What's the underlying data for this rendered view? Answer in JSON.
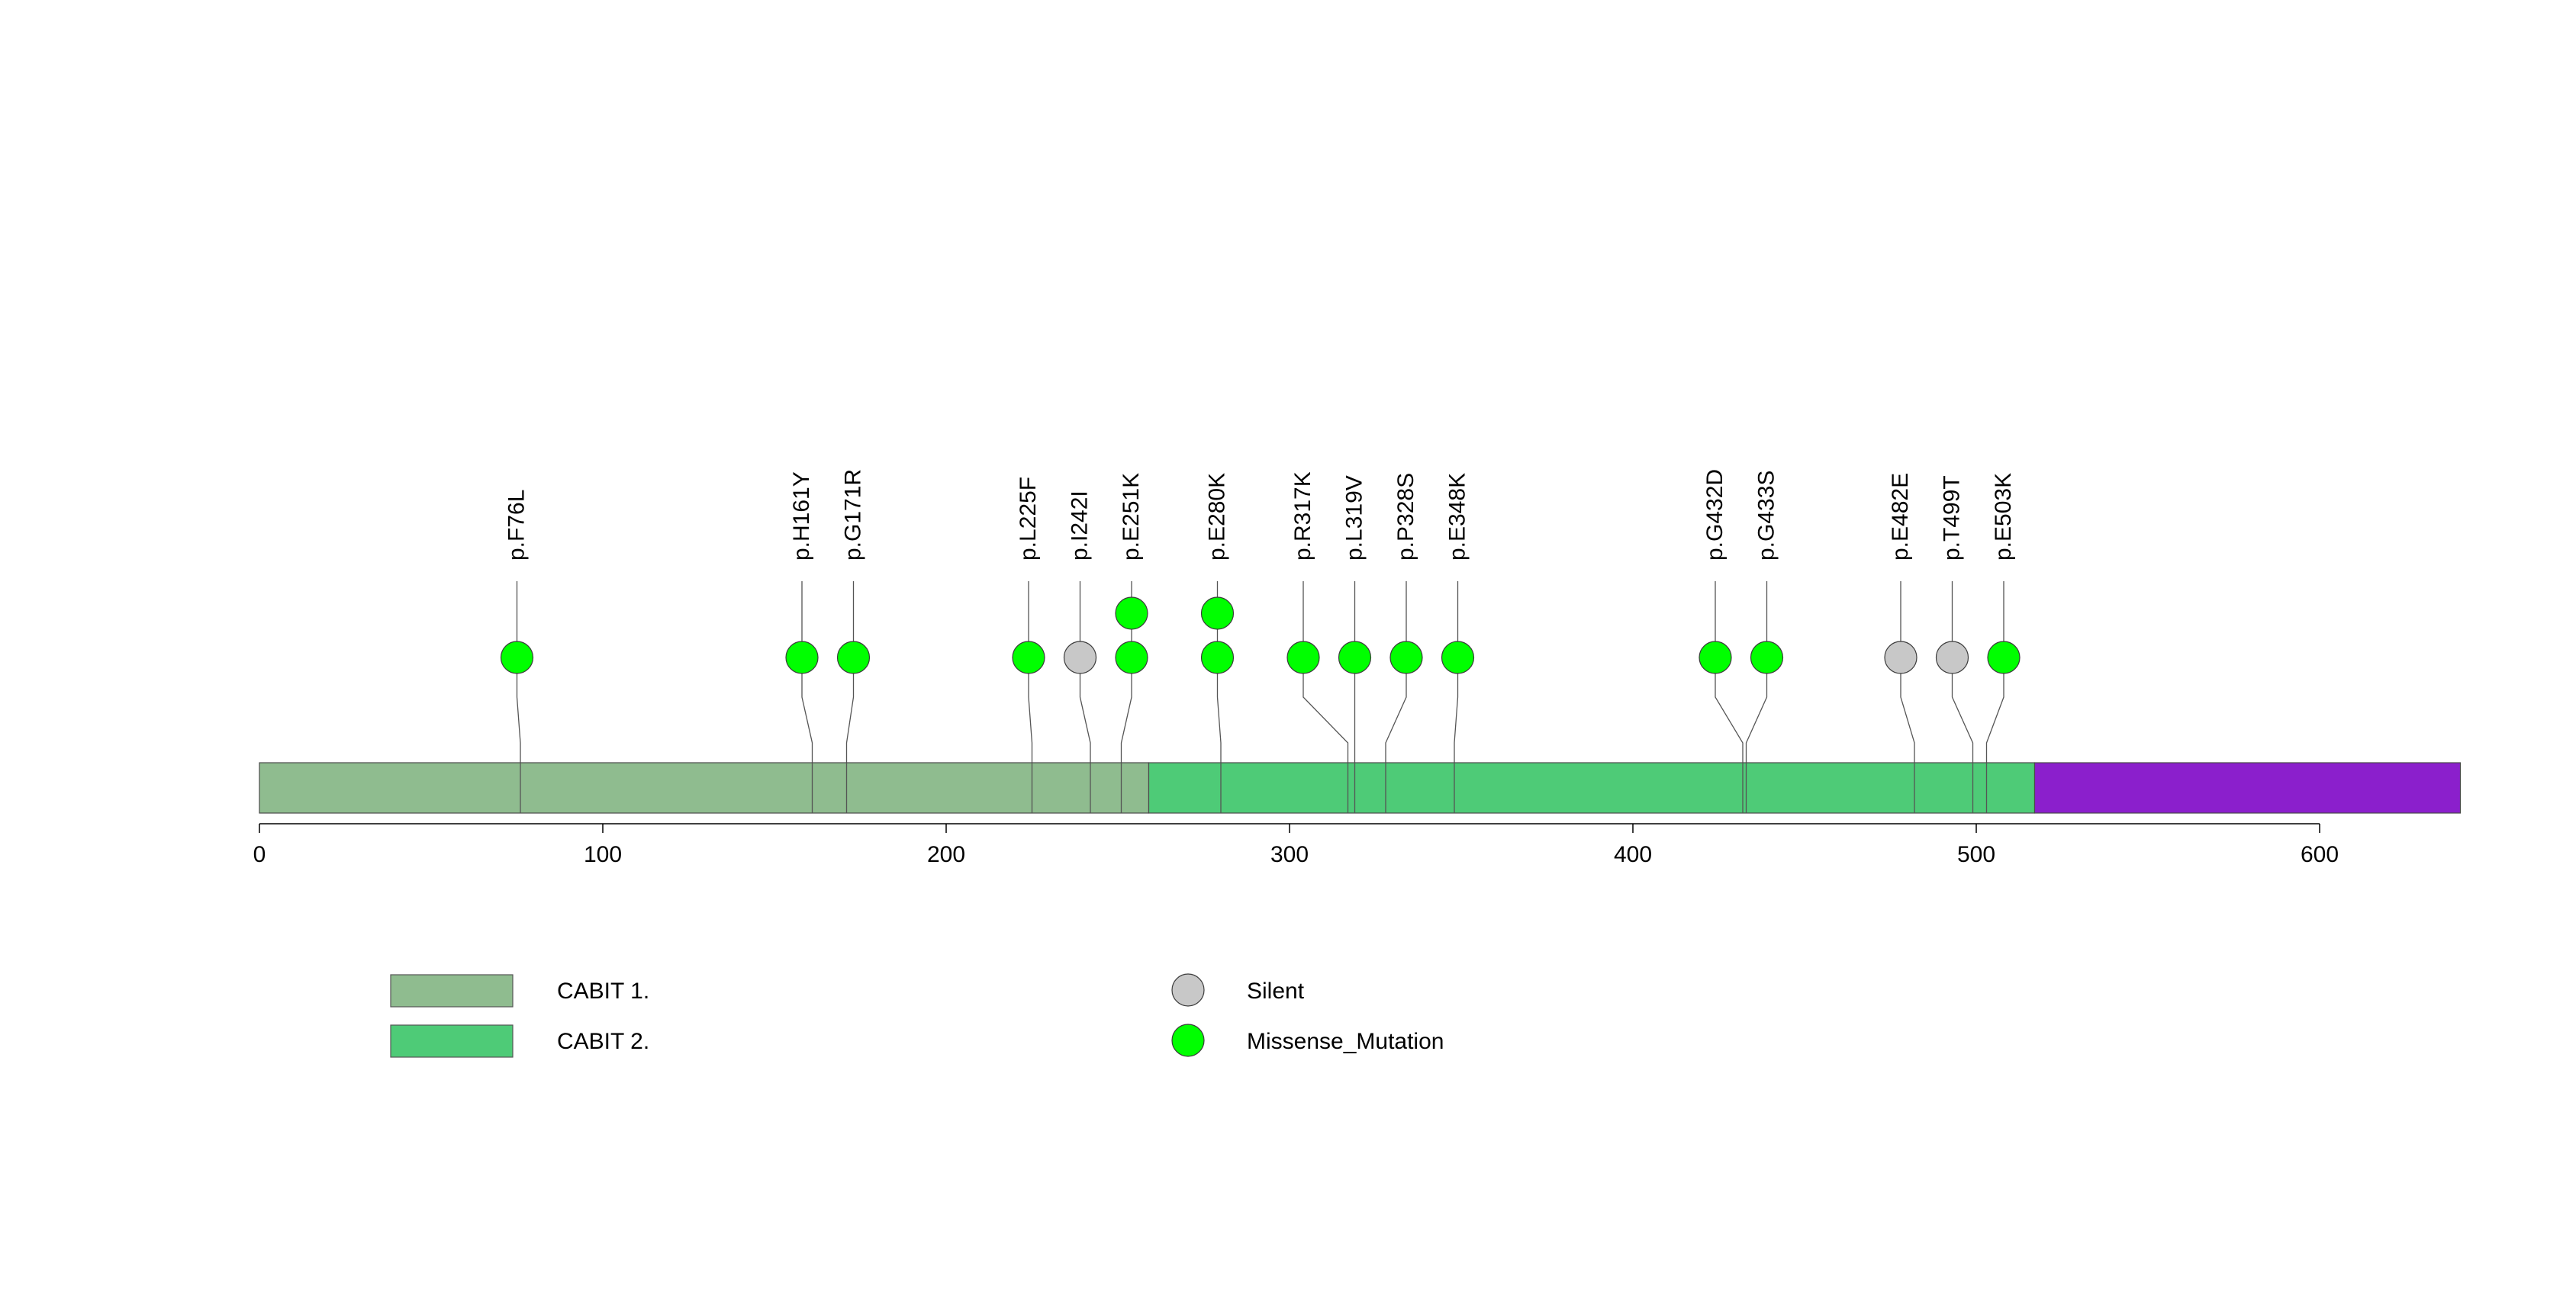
{
  "chart_data": {
    "type": "lollipop",
    "protein_length": 641,
    "x_ticks": [
      0,
      100,
      200,
      300,
      400,
      500,
      600
    ],
    "x_tick_labels": [
      "0",
      "100",
      "200",
      "300",
      "400",
      "500",
      "600"
    ],
    "domains": [
      {
        "name": "CABIT 1.",
        "start": 0,
        "end": 259,
        "color": "#8fbc8f"
      },
      {
        "name": "CABIT 2.",
        "start": 259,
        "end": 517,
        "color": "#4ecb77"
      },
      {
        "name": "",
        "start": 517,
        "end": 641,
        "color": "#8b1fcc"
      }
    ],
    "mutations": [
      {
        "label": "p.F76L",
        "position": 76,
        "type": "Missense_Mutation",
        "count": 1,
        "display": 75
      },
      {
        "label": "p.H161Y",
        "position": 161,
        "type": "Missense_Mutation",
        "count": 1,
        "display": 158
      },
      {
        "label": "p.G171R",
        "position": 171,
        "type": "Missense_Mutation",
        "count": 1,
        "display": 173
      },
      {
        "label": "p.L225F",
        "position": 225,
        "type": "Missense_Mutation",
        "count": 1,
        "display": 224
      },
      {
        "label": "p.I242I",
        "position": 242,
        "type": "Silent",
        "count": 1,
        "display": 239
      },
      {
        "label": "p.E251K",
        "position": 251,
        "type": "Missense_Mutation",
        "count": 2,
        "display": 254
      },
      {
        "label": "p.E280K",
        "position": 280,
        "type": "Missense_Mutation",
        "count": 2,
        "display": 279
      },
      {
        "label": "p.R317K",
        "position": 317,
        "type": "Missense_Mutation",
        "count": 1,
        "display": 304
      },
      {
        "label": "p.L319V",
        "position": 319,
        "type": "Missense_Mutation",
        "count": 1,
        "display": 319
      },
      {
        "label": "p.P328S",
        "position": 328,
        "type": "Missense_Mutation",
        "count": 1,
        "display": 334
      },
      {
        "label": "p.E348K",
        "position": 348,
        "type": "Missense_Mutation",
        "count": 1,
        "display": 349
      },
      {
        "label": "p.G432D",
        "position": 432,
        "type": "Missense_Mutation",
        "count": 1,
        "display": 424
      },
      {
        "label": "p.G433S",
        "position": 433,
        "type": "Missense_Mutation",
        "count": 1,
        "display": 439
      },
      {
        "label": "p.E482E",
        "position": 482,
        "type": "Silent",
        "count": 1,
        "display": 478
      },
      {
        "label": "p.T499T",
        "position": 499,
        "type": "Silent",
        "count": 1,
        "display": 493
      },
      {
        "label": "p.E503K",
        "position": 503,
        "type": "Missense_Mutation",
        "count": 1,
        "display": 508
      }
    ],
    "mutation_colors": {
      "Silent": "#c8c8c8",
      "Missense_Mutation": "#00ff00"
    },
    "legend": {
      "domains": [
        {
          "label": "CABIT 1.",
          "color": "#8fbc8f"
        },
        {
          "label": "CABIT 2.",
          "color": "#4ecb77"
        }
      ],
      "mutation_types": [
        {
          "label": "Silent",
          "color": "#c8c8c8"
        },
        {
          "label": "Missense_Mutation",
          "color": "#00ff00"
        }
      ]
    }
  }
}
